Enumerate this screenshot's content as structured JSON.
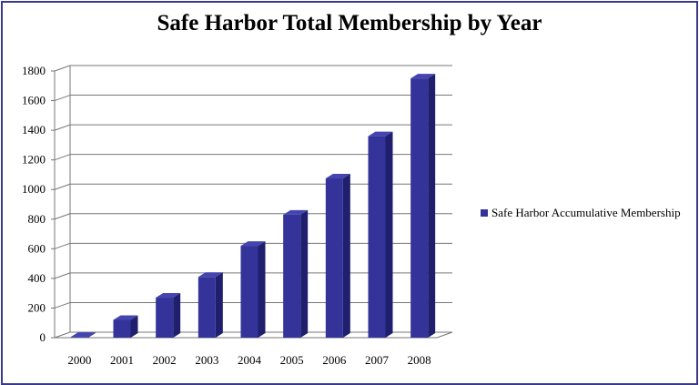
{
  "chart_data": {
    "type": "bar",
    "title": "Safe Harbor Total Membership by Year",
    "categories": [
      "2000",
      "2001",
      "2002",
      "2003",
      "2004",
      "2005",
      "2006",
      "2007",
      "2008"
    ],
    "series": [
      {
        "name": "Safe Harbor Accumulative Membership",
        "values": [
          5,
          120,
          270,
          410,
          620,
          830,
          1075,
          1360,
          1750
        ],
        "color": "#33339a"
      }
    ],
    "ylim": [
      0,
      1800
    ],
    "yticks": [
      0,
      200,
      400,
      600,
      800,
      1000,
      1200,
      1400,
      1600,
      1800
    ],
    "grid": true,
    "legend": "right",
    "style": "3d-column"
  }
}
